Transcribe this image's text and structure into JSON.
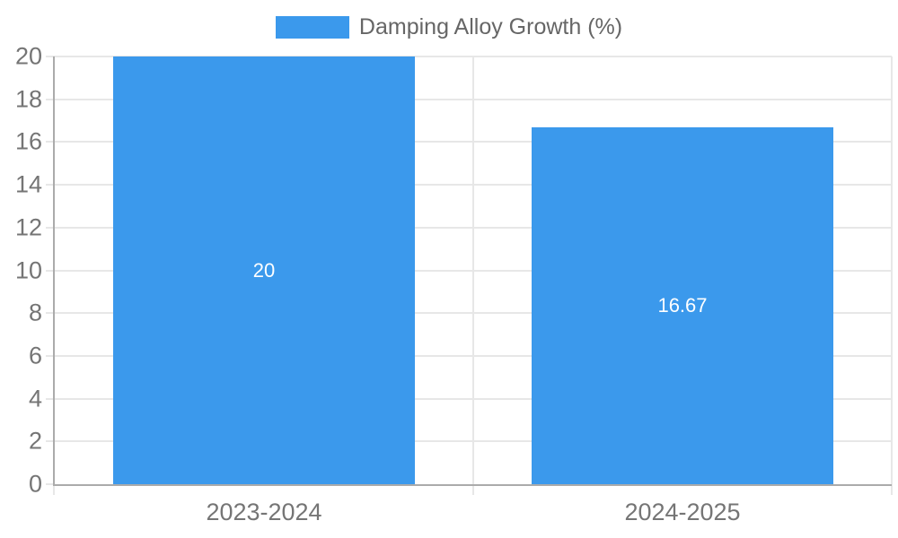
{
  "chart_data": {
    "type": "bar",
    "title": "",
    "legend": {
      "label": "Damping Alloy Growth (%)",
      "position": "top-center"
    },
    "categories": [
      "2023-2024",
      "2024-2025"
    ],
    "series": [
      {
        "name": "Damping Alloy Growth (%)",
        "values": [
          20,
          16.67
        ],
        "value_labels": [
          "20",
          "16.67"
        ]
      }
    ],
    "xlabel": "",
    "ylabel": "",
    "ylim": [
      0,
      20
    ],
    "yticks": [
      0,
      2,
      4,
      6,
      8,
      10,
      12,
      14,
      16,
      18,
      20
    ],
    "grid": true,
    "colors": {
      "bar": "#3B99EC",
      "grid": "#E7E7E7",
      "axis": "#ABABAB",
      "tick_label": "#757575",
      "legend_text": "#666666",
      "bar_label": "#FFFFFF",
      "background": "#FFFFFF"
    }
  }
}
